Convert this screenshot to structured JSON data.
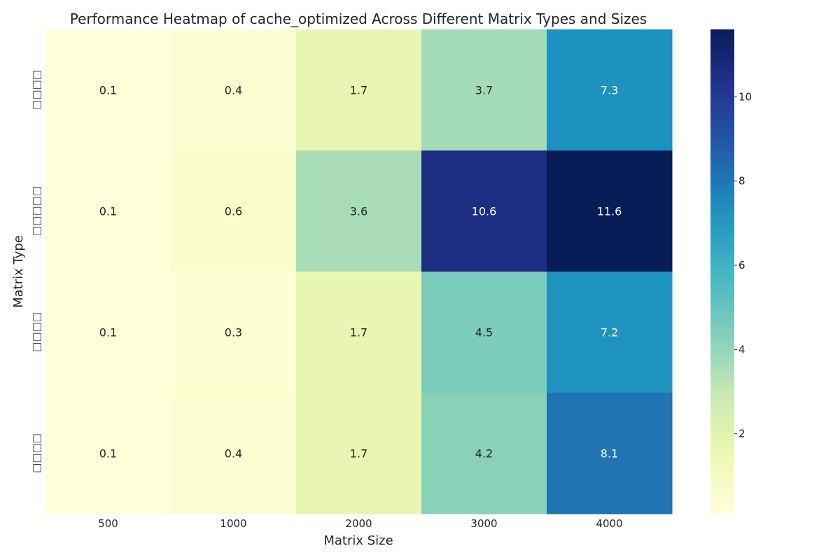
{
  "chart_data": {
    "type": "heatmap",
    "title": "Performance Heatmap of cache_optimized Across Different Matrix Types and Sizes",
    "xlabel": "Matrix Size",
    "ylabel": "Matrix Type",
    "x_categories": [
      "500",
      "1000",
      "2000",
      "3000",
      "4000"
    ],
    "y_categories": [
      "□□□□",
      "□□□□□",
      "□□□□",
      "□□□□"
    ],
    "values": [
      [
        0.1,
        0.4,
        1.7,
        3.7,
        7.3
      ],
      [
        0.1,
        0.6,
        3.6,
        10.6,
        11.6
      ],
      [
        0.1,
        0.3,
        1.7,
        4.5,
        7.2
      ],
      [
        0.1,
        0.4,
        1.7,
        4.2,
        8.1
      ]
    ],
    "value_labels": [
      [
        "0.1",
        "0.4",
        "1.7",
        "3.7",
        "7.3"
      ],
      [
        "0.1",
        "0.6",
        "3.6",
        "10.6",
        "11.6"
      ],
      [
        "0.1",
        "0.3",
        "1.7",
        "4.5",
        "7.2"
      ],
      [
        "0.1",
        "0.4",
        "1.7",
        "4.2",
        "8.1"
      ]
    ],
    "colormap": "YlGnBu",
    "colorbar": {
      "range": [
        0.1,
        11.6
      ],
      "ticks": [
        2,
        4,
        6,
        8,
        10
      ]
    },
    "grid": false
  }
}
